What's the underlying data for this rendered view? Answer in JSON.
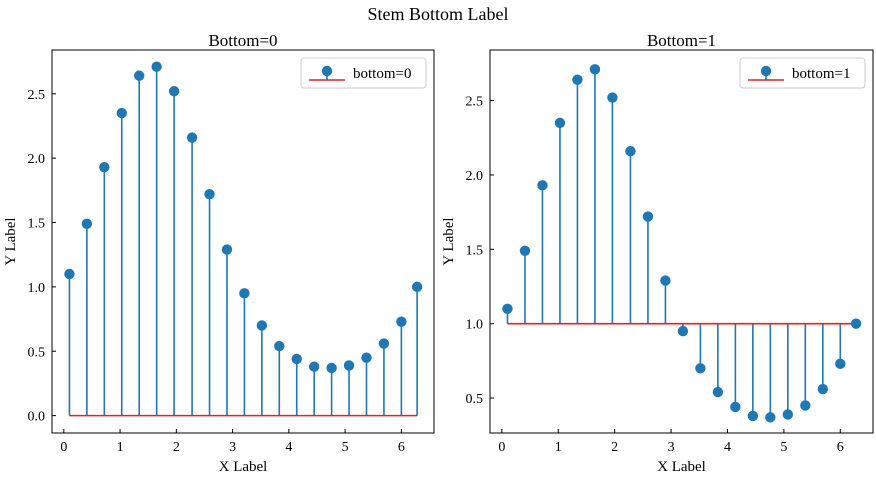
{
  "figure": {
    "suptitle": "Stem Bottom Label"
  },
  "chart_data": [
    {
      "type": "stem",
      "title": "Bottom=0",
      "xlabel": "X Label",
      "ylabel": "Y Label",
      "bottom": 0,
      "legend": {
        "label": "bottom=0",
        "placement": "upper right"
      },
      "xlim": [
        -0.21,
        6.58
      ],
      "ylim": [
        -0.135,
        2.84
      ],
      "xticks": [
        0,
        1,
        2,
        3,
        4,
        5,
        6
      ],
      "xtick_labels": [
        "0",
        "1",
        "2",
        "3",
        "4",
        "5",
        "6"
      ],
      "yticks": [
        0.0,
        0.5,
        1.0,
        1.5,
        2.0,
        2.5
      ],
      "ytick_labels": [
        "0.0",
        "0.5",
        "1.0",
        "1.5",
        "2.0",
        "2.5"
      ],
      "x": [
        0.1,
        0.41,
        0.72,
        1.03,
        1.34,
        1.65,
        1.96,
        2.28,
        2.59,
        2.9,
        3.21,
        3.52,
        3.83,
        4.14,
        4.45,
        4.76,
        5.07,
        5.38,
        5.69,
        6.0,
        6.28
      ],
      "y": [
        1.1,
        1.49,
        1.93,
        2.35,
        2.64,
        2.71,
        2.52,
        2.16,
        1.72,
        1.29,
        0.95,
        0.7,
        0.54,
        0.44,
        0.38,
        0.37,
        0.39,
        0.45,
        0.56,
        0.73,
        1.0
      ],
      "colors": {
        "stem": "#1f77b4",
        "baseline": "#d62728"
      }
    },
    {
      "type": "stem",
      "title": "Bottom=1",
      "xlabel": "X Label",
      "ylabel": "Y Label",
      "bottom": 1,
      "legend": {
        "label": "bottom=1",
        "placement": "upper right"
      },
      "xlim": [
        -0.21,
        6.58
      ],
      "ylim": [
        0.265,
        2.84
      ],
      "xticks": [
        0,
        1,
        2,
        3,
        4,
        5,
        6
      ],
      "xtick_labels": [
        "0",
        "1",
        "2",
        "3",
        "4",
        "5",
        "6"
      ],
      "yticks": [
        0.5,
        1.0,
        1.5,
        2.0,
        2.5
      ],
      "ytick_labels": [
        "0.5",
        "1.0",
        "1.5",
        "2.0",
        "2.5"
      ],
      "x": [
        0.1,
        0.41,
        0.72,
        1.03,
        1.34,
        1.65,
        1.96,
        2.28,
        2.59,
        2.9,
        3.21,
        3.52,
        3.83,
        4.14,
        4.45,
        4.76,
        5.07,
        5.38,
        5.69,
        6.0,
        6.28
      ],
      "y": [
        1.1,
        1.49,
        1.93,
        2.35,
        2.64,
        2.71,
        2.52,
        2.16,
        1.72,
        1.29,
        0.95,
        0.7,
        0.54,
        0.44,
        0.38,
        0.37,
        0.39,
        0.45,
        0.56,
        0.73,
        1.0
      ],
      "colors": {
        "stem": "#1f77b4",
        "baseline": "#d62728"
      }
    }
  ]
}
